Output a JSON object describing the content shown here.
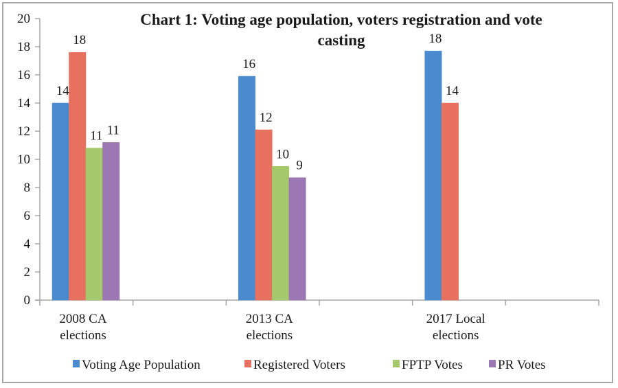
{
  "chart_data": {
    "type": "bar",
    "title_lines": [
      "Chart 1: Voting age  population, voters registration and vote",
      "casting"
    ],
    "title": "Chart 1: Voting age  population, voters registration and vote casting",
    "xlabel": "",
    "ylabel": "",
    "ylim": [
      0,
      20
    ],
    "yticks": [
      0,
      2,
      4,
      6,
      8,
      10,
      12,
      14,
      16,
      18,
      20
    ],
    "grid": false,
    "legend_position": "bottom",
    "categories": [
      {
        "lines": [
          "2008 CA",
          "elections"
        ],
        "label": "2008 CA elections"
      },
      {
        "lines": [
          "2013 CA",
          "elections"
        ],
        "label": "2013 CA elections"
      },
      {
        "lines": [
          "2017 Local",
          "elections"
        ],
        "label": "2017 Local elections"
      }
    ],
    "series": [
      {
        "name": "Voting Age Population",
        "color": "#4a8bcf",
        "values": [
          14.0,
          15.9,
          17.7
        ],
        "labels": [
          "14",
          "16",
          "18"
        ]
      },
      {
        "name": "Registered Voters",
        "color": "#e8705f",
        "values": [
          17.6,
          12.1,
          14.0
        ],
        "labels": [
          "18",
          "12",
          "14"
        ]
      },
      {
        "name": "FPTP Votes",
        "color": "#a5c86b",
        "values": [
          10.8,
          9.5,
          null
        ],
        "labels": [
          "11",
          "10",
          null
        ]
      },
      {
        "name": "PR Votes",
        "color": "#9b77b3",
        "values": [
          11.2,
          8.7,
          null
        ],
        "labels": [
          "11",
          "9",
          null
        ]
      }
    ]
  }
}
